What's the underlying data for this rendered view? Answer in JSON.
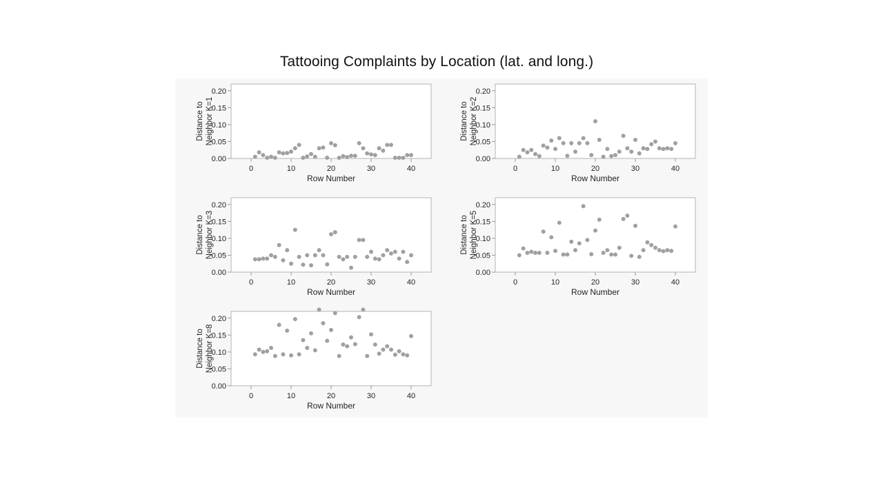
{
  "page_title": "Tattooing Complaints by Location (lat. and long.)",
  "colors": {
    "point": "#a0a0a0",
    "axis": "#9a9a9a",
    "frame": "#b3b3b3",
    "panel_bg": "#f7f7f7",
    "plot_bg": "#ffffff",
    "text": "#222222"
  },
  "chart_data": [
    {
      "type": "scatter",
      "ylabel": [
        "Distance to",
        "Neighbor K=1"
      ],
      "xlabel": "Row Number",
      "xlim": [
        -5,
        45
      ],
      "ylim": [
        0,
        0.22
      ],
      "xticks": [
        0,
        10,
        20,
        30,
        40
      ],
      "yticks": [
        0.0,
        0.05,
        0.1,
        0.15,
        0.2
      ],
      "x": [
        1,
        2,
        3,
        4,
        5,
        6,
        7,
        8,
        9,
        10,
        11,
        12,
        13,
        14,
        15,
        16,
        17,
        18,
        19,
        20,
        21,
        22,
        23,
        24,
        25,
        26,
        27,
        28,
        29,
        30,
        31,
        32,
        33,
        34,
        35,
        36,
        37,
        38,
        39,
        40
      ],
      "y": [
        0.005,
        0.018,
        0.01,
        0.002,
        0.005,
        0.002,
        0.018,
        0.015,
        0.016,
        0.02,
        0.03,
        0.04,
        0.002,
        0.006,
        0.013,
        0.005,
        0.03,
        0.032,
        0.002,
        0.045,
        0.039,
        0.002,
        0.007,
        0.004,
        0.008,
        0.008,
        0.045,
        0.03,
        0.015,
        0.012,
        0.01,
        0.03,
        0.023,
        0.04,
        0.04,
        0.002,
        0.002,
        0.002,
        0.01,
        0.01
      ]
    },
    {
      "type": "scatter",
      "ylabel": [
        "Distance to",
        "Neighbor K=2"
      ],
      "xlabel": "Row Number",
      "xlim": [
        -5,
        45
      ],
      "ylim": [
        0,
        0.22
      ],
      "xticks": [
        0,
        10,
        20,
        30,
        40
      ],
      "yticks": [
        0.0,
        0.05,
        0.1,
        0.15,
        0.2
      ],
      "x": [
        1,
        2,
        3,
        4,
        5,
        6,
        7,
        8,
        9,
        10,
        11,
        12,
        13,
        14,
        15,
        16,
        17,
        18,
        19,
        20,
        21,
        22,
        23,
        24,
        25,
        26,
        27,
        28,
        29,
        30,
        31,
        32,
        33,
        34,
        35,
        36,
        37,
        38,
        39,
        40
      ],
      "y": [
        0.005,
        0.025,
        0.018,
        0.025,
        0.013,
        0.007,
        0.038,
        0.032,
        0.053,
        0.028,
        0.06,
        0.045,
        0.008,
        0.045,
        0.02,
        0.045,
        0.06,
        0.045,
        0.01,
        0.11,
        0.055,
        0.005,
        0.028,
        0.007,
        0.01,
        0.02,
        0.067,
        0.03,
        0.02,
        0.055,
        0.015,
        0.03,
        0.028,
        0.042,
        0.05,
        0.03,
        0.028,
        0.03,
        0.028,
        0.045
      ]
    },
    {
      "type": "scatter",
      "ylabel": [
        "Distance to",
        "Neighbor K=3"
      ],
      "xlabel": "Row Number",
      "xlim": [
        -5,
        45
      ],
      "ylim": [
        0,
        0.22
      ],
      "xticks": [
        0,
        10,
        20,
        30,
        40
      ],
      "yticks": [
        0.0,
        0.05,
        0.1,
        0.15,
        0.2
      ],
      "x": [
        1,
        2,
        3,
        4,
        5,
        6,
        7,
        8,
        9,
        10,
        11,
        12,
        13,
        14,
        15,
        16,
        17,
        18,
        19,
        20,
        21,
        22,
        23,
        24,
        25,
        26,
        27,
        28,
        29,
        30,
        31,
        32,
        33,
        34,
        35,
        36,
        37,
        38,
        39,
        40
      ],
      "y": [
        0.038,
        0.038,
        0.04,
        0.04,
        0.05,
        0.045,
        0.08,
        0.035,
        0.065,
        0.025,
        0.125,
        0.045,
        0.022,
        0.05,
        0.02,
        0.05,
        0.065,
        0.05,
        0.023,
        0.112,
        0.118,
        0.045,
        0.038,
        0.045,
        0.013,
        0.045,
        0.095,
        0.095,
        0.045,
        0.06,
        0.04,
        0.038,
        0.05,
        0.065,
        0.055,
        0.06,
        0.04,
        0.06,
        0.03,
        0.05
      ]
    },
    {
      "type": "scatter",
      "ylabel": [
        "Distance to",
        "Neighbor K=5"
      ],
      "xlabel": "Row Number",
      "xlim": [
        -5,
        45
      ],
      "ylim": [
        0,
        0.22
      ],
      "xticks": [
        0,
        10,
        20,
        30,
        40
      ],
      "yticks": [
        0.0,
        0.05,
        0.1,
        0.15,
        0.2
      ],
      "x": [
        1,
        2,
        3,
        4,
        5,
        6,
        7,
        8,
        9,
        10,
        11,
        12,
        13,
        14,
        15,
        16,
        17,
        18,
        19,
        20,
        21,
        22,
        23,
        24,
        25,
        26,
        27,
        28,
        29,
        30,
        31,
        32,
        33,
        34,
        35,
        36,
        37,
        38,
        39,
        40
      ],
      "y": [
        0.05,
        0.07,
        0.057,
        0.06,
        0.057,
        0.057,
        0.12,
        0.057,
        0.103,
        0.063,
        0.146,
        0.052,
        0.052,
        0.09,
        0.065,
        0.085,
        0.195,
        0.095,
        0.053,
        0.123,
        0.155,
        0.057,
        0.065,
        0.052,
        0.052,
        0.072,
        0.157,
        0.167,
        0.048,
        0.137,
        0.045,
        0.065,
        0.088,
        0.08,
        0.072,
        0.065,
        0.062,
        0.065,
        0.063,
        0.135
      ]
    },
    {
      "type": "scatter",
      "ylabel": [
        "Distance to",
        "Neighbor K=8"
      ],
      "xlabel": "Row Number",
      "xlim": [
        -5,
        45
      ],
      "ylim": [
        0,
        0.22
      ],
      "xticks": [
        0,
        10,
        20,
        30,
        40
      ],
      "yticks": [
        0.0,
        0.05,
        0.1,
        0.15,
        0.2
      ],
      "x": [
        1,
        2,
        3,
        4,
        5,
        6,
        7,
        8,
        9,
        10,
        11,
        12,
        13,
        14,
        15,
        16,
        17,
        18,
        19,
        20,
        21,
        22,
        23,
        24,
        25,
        26,
        27,
        28,
        29,
        30,
        31,
        32,
        33,
        34,
        35,
        36,
        37,
        38,
        39,
        40
      ],
      "y": [
        0.093,
        0.107,
        0.1,
        0.102,
        0.112,
        0.088,
        0.18,
        0.093,
        0.163,
        0.09,
        0.197,
        0.093,
        0.135,
        0.112,
        0.155,
        0.105,
        0.225,
        0.185,
        0.133,
        0.165,
        0.215,
        0.088,
        0.122,
        0.117,
        0.143,
        0.123,
        0.203,
        0.225,
        0.088,
        0.152,
        0.122,
        0.095,
        0.107,
        0.117,
        0.107,
        0.092,
        0.102,
        0.093,
        0.09,
        0.147
      ]
    }
  ]
}
